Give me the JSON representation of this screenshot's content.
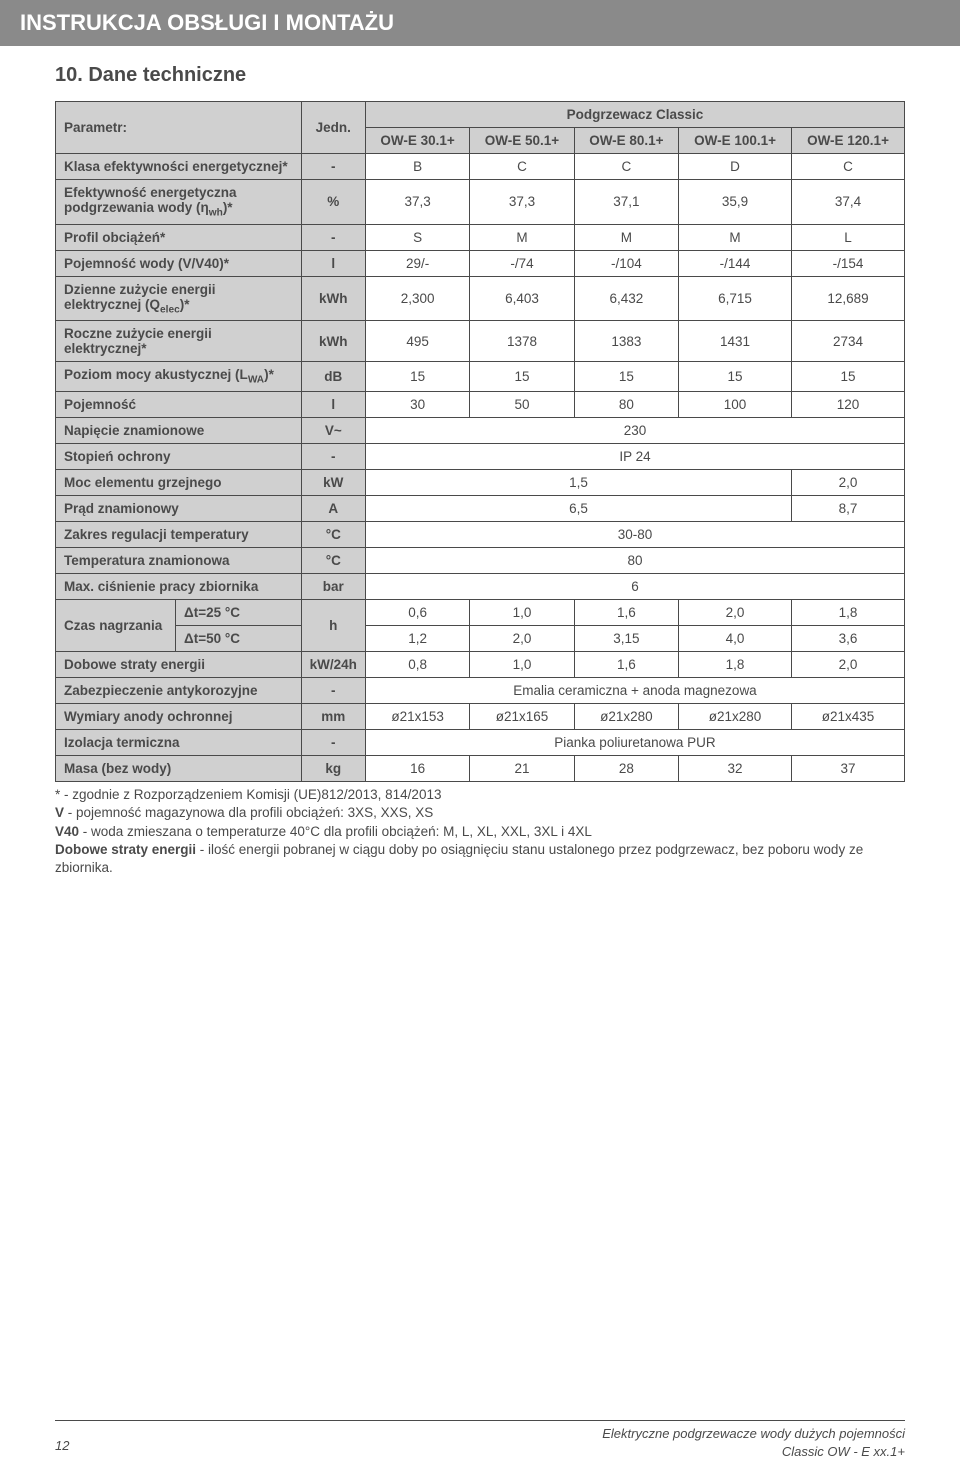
{
  "header": {
    "title": "INSTRUKCJA OBSŁUGI I MONTAŻU"
  },
  "section": {
    "title": "10. Dane techniczne"
  },
  "table": {
    "param_header": "Parametr:",
    "unit_header": "Jedn.",
    "group_header": "Podgrzewacz Classic",
    "models": [
      "OW-E 30.1+",
      "OW-E 50.1+",
      "OW-E 80.1+",
      "OW-E 100.1+",
      "OW-E 120.1+"
    ],
    "rows": {
      "energy_class": {
        "label": "Klasa efektywności energetycznej*",
        "unit": "-",
        "vals": [
          "B",
          "C",
          "C",
          "D",
          "C"
        ]
      },
      "efficiency": {
        "label_html": "Efektywność energetyczna podgrzewania wody (η<sub>wh</sub>)*",
        "unit": "%",
        "vals": [
          "37,3",
          "37,3",
          "37,1",
          "35,9",
          "37,4"
        ]
      },
      "load_profile": {
        "label": "Profil obciążeń*",
        "unit": "-",
        "vals": [
          "S",
          "M",
          "M",
          "M",
          "L"
        ]
      },
      "capacity_v": {
        "label": "Pojemność wody (V/V40)*",
        "unit": "l",
        "vals": [
          "29/-",
          "-/74",
          "-/104",
          "-/144",
          "-/154"
        ]
      },
      "daily_energy": {
        "label_html": "Dzienne zużycie energii elektrycznej (Q<sub>elec</sub>)*",
        "unit": "kWh",
        "vals": [
          "2,300",
          "6,403",
          "6,432",
          "6,715",
          "12,689"
        ]
      },
      "annual_energy": {
        "label": "Roczne zużycie energii elektrycznej*",
        "unit": "kWh",
        "vals": [
          "495",
          "1378",
          "1383",
          "1431",
          "2734"
        ]
      },
      "sound": {
        "label_html": "Poziom mocy akustycznej (L<sub>WA</sub>)*",
        "unit": "dB",
        "vals": [
          "15",
          "15",
          "15",
          "15",
          "15"
        ]
      },
      "capacity": {
        "label": "Pojemność",
        "unit": "l",
        "vals": [
          "30",
          "50",
          "80",
          "100",
          "120"
        ]
      },
      "voltage": {
        "label": "Napięcie znamionowe",
        "unit": "V~",
        "span5": "230"
      },
      "ip": {
        "label": "Stopień ochrony",
        "unit": "-",
        "span5": "IP 24"
      },
      "heating_power": {
        "label": "Moc elementu grzejnego",
        "unit": "kW",
        "span4": "1,5",
        "last": "2,0"
      },
      "current": {
        "label": "Prąd znamionowy",
        "unit": "A",
        "span4": "6,5",
        "last": "8,7"
      },
      "temp_range": {
        "label": "Zakres regulacji temperatury",
        "unit": "°C",
        "span5": "30-80"
      },
      "nominal_temp": {
        "label": "Temperatura znamionowa",
        "unit": "°C",
        "span5": "80"
      },
      "max_pressure": {
        "label": "Max. ciśnienie pracy zbiornika",
        "unit": "bar",
        "span5": "6"
      },
      "heatup": {
        "label": "Czas nagrzania",
        "unit": "h",
        "row1_label": "Δt=25 °C",
        "row1_vals": [
          "0,6",
          "1,0",
          "1,6",
          "2,0",
          "1,8"
        ],
        "row2_label": "Δt=50 °C",
        "row2_vals": [
          "1,2",
          "2,0",
          "3,15",
          "4,0",
          "3,6"
        ]
      },
      "daily_loss": {
        "label": "Dobowe straty energii",
        "unit": "kW/24h",
        "vals": [
          "0,8",
          "1,0",
          "1,6",
          "1,8",
          "2,0"
        ]
      },
      "corrosion": {
        "label": "Zabezpieczenie antykorozyjne",
        "unit": "-",
        "span5": "Emalia ceramiczna + anoda magnezowa"
      },
      "anode": {
        "label": "Wymiary anody ochronnej",
        "unit": "mm",
        "vals": [
          "ø21x153",
          "ø21x165",
          "ø21x280",
          "ø21x280",
          "ø21x435"
        ]
      },
      "insulation": {
        "label": "Izolacja termiczna",
        "unit": "-",
        "span5": "Pianka poliuretanowa PUR"
      },
      "mass": {
        "label": "Masa (bez wody)",
        "unit": "kg",
        "vals": [
          "16",
          "21",
          "28",
          "32",
          "37"
        ]
      }
    }
  },
  "notes": {
    "n1": "* - zgodnie z Rozporządzeniem Komisji (UE)812/2013, 814/2013",
    "n2_b": "V",
    "n2": " - pojemność magazynowa dla profili obciążeń: 3XS, XXS, XS",
    "n3_b": "V40",
    "n3": " - woda zmieszana o temperaturze 40°C dla profili obciążeń: M, L, XL, XXL, 3XL i 4XL",
    "n4_b": "Dobowe straty energii",
    "n4": " - ilość energii pobranej w ciągu doby po osiągnięciu stanu ustalonego przez podgrzewacz, bez poboru wody ze zbiornika."
  },
  "footer": {
    "page_num": "12",
    "line1": "Elektryczne podgrzewacze wody dużych pojemności",
    "line2": "Classic OW - E xx.1+"
  },
  "colors": {
    "header_bg": "#8a8a8a",
    "cell_header_bg": "#d0d0d0",
    "border": "#4a4a4a",
    "text": "#4a4a4a"
  }
}
